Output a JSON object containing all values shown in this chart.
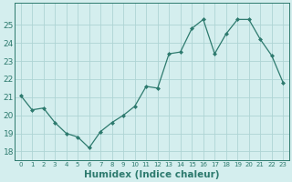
{
  "x": [
    0,
    1,
    2,
    3,
    4,
    5,
    6,
    7,
    8,
    9,
    10,
    11,
    12,
    13,
    14,
    15,
    16,
    17,
    18,
    19,
    20,
    21,
    22,
    23
  ],
  "y": [
    21.1,
    20.3,
    20.4,
    19.6,
    19.0,
    18.8,
    18.2,
    19.1,
    19.6,
    20.0,
    20.5,
    21.6,
    21.5,
    23.4,
    23.5,
    24.8,
    25.3,
    23.4,
    24.5,
    25.3,
    25.3,
    24.2,
    23.3,
    21.8
  ],
  "line_color": "#2d7a6e",
  "marker": "D",
  "marker_size": 2.0,
  "bg_color": "#d4eeee",
  "grid_color": "#aed4d4",
  "tick_color": "#2d7a6e",
  "xlabel": "Humidex (Indice chaleur)",
  "xlabel_fontsize": 7.5,
  "xlabel_color": "#2d7a6e",
  "ylim": [
    17.5,
    26.2
  ],
  "yticks": [
    18,
    19,
    20,
    21,
    22,
    23,
    24,
    25
  ],
  "ytick_fontsize": 6.5,
  "xtick_labels": [
    "0",
    "1",
    "2",
    "3",
    "4",
    "5",
    "6",
    "7",
    "8",
    "9",
    "10",
    "11",
    "12",
    "13",
    "14",
    "15",
    "16",
    "17",
    "18",
    "19",
    "20",
    "21",
    "22",
    "23"
  ],
  "xtick_fontsize": 5.0,
  "spine_color": "#2d7a6e",
  "linewidth": 0.9
}
